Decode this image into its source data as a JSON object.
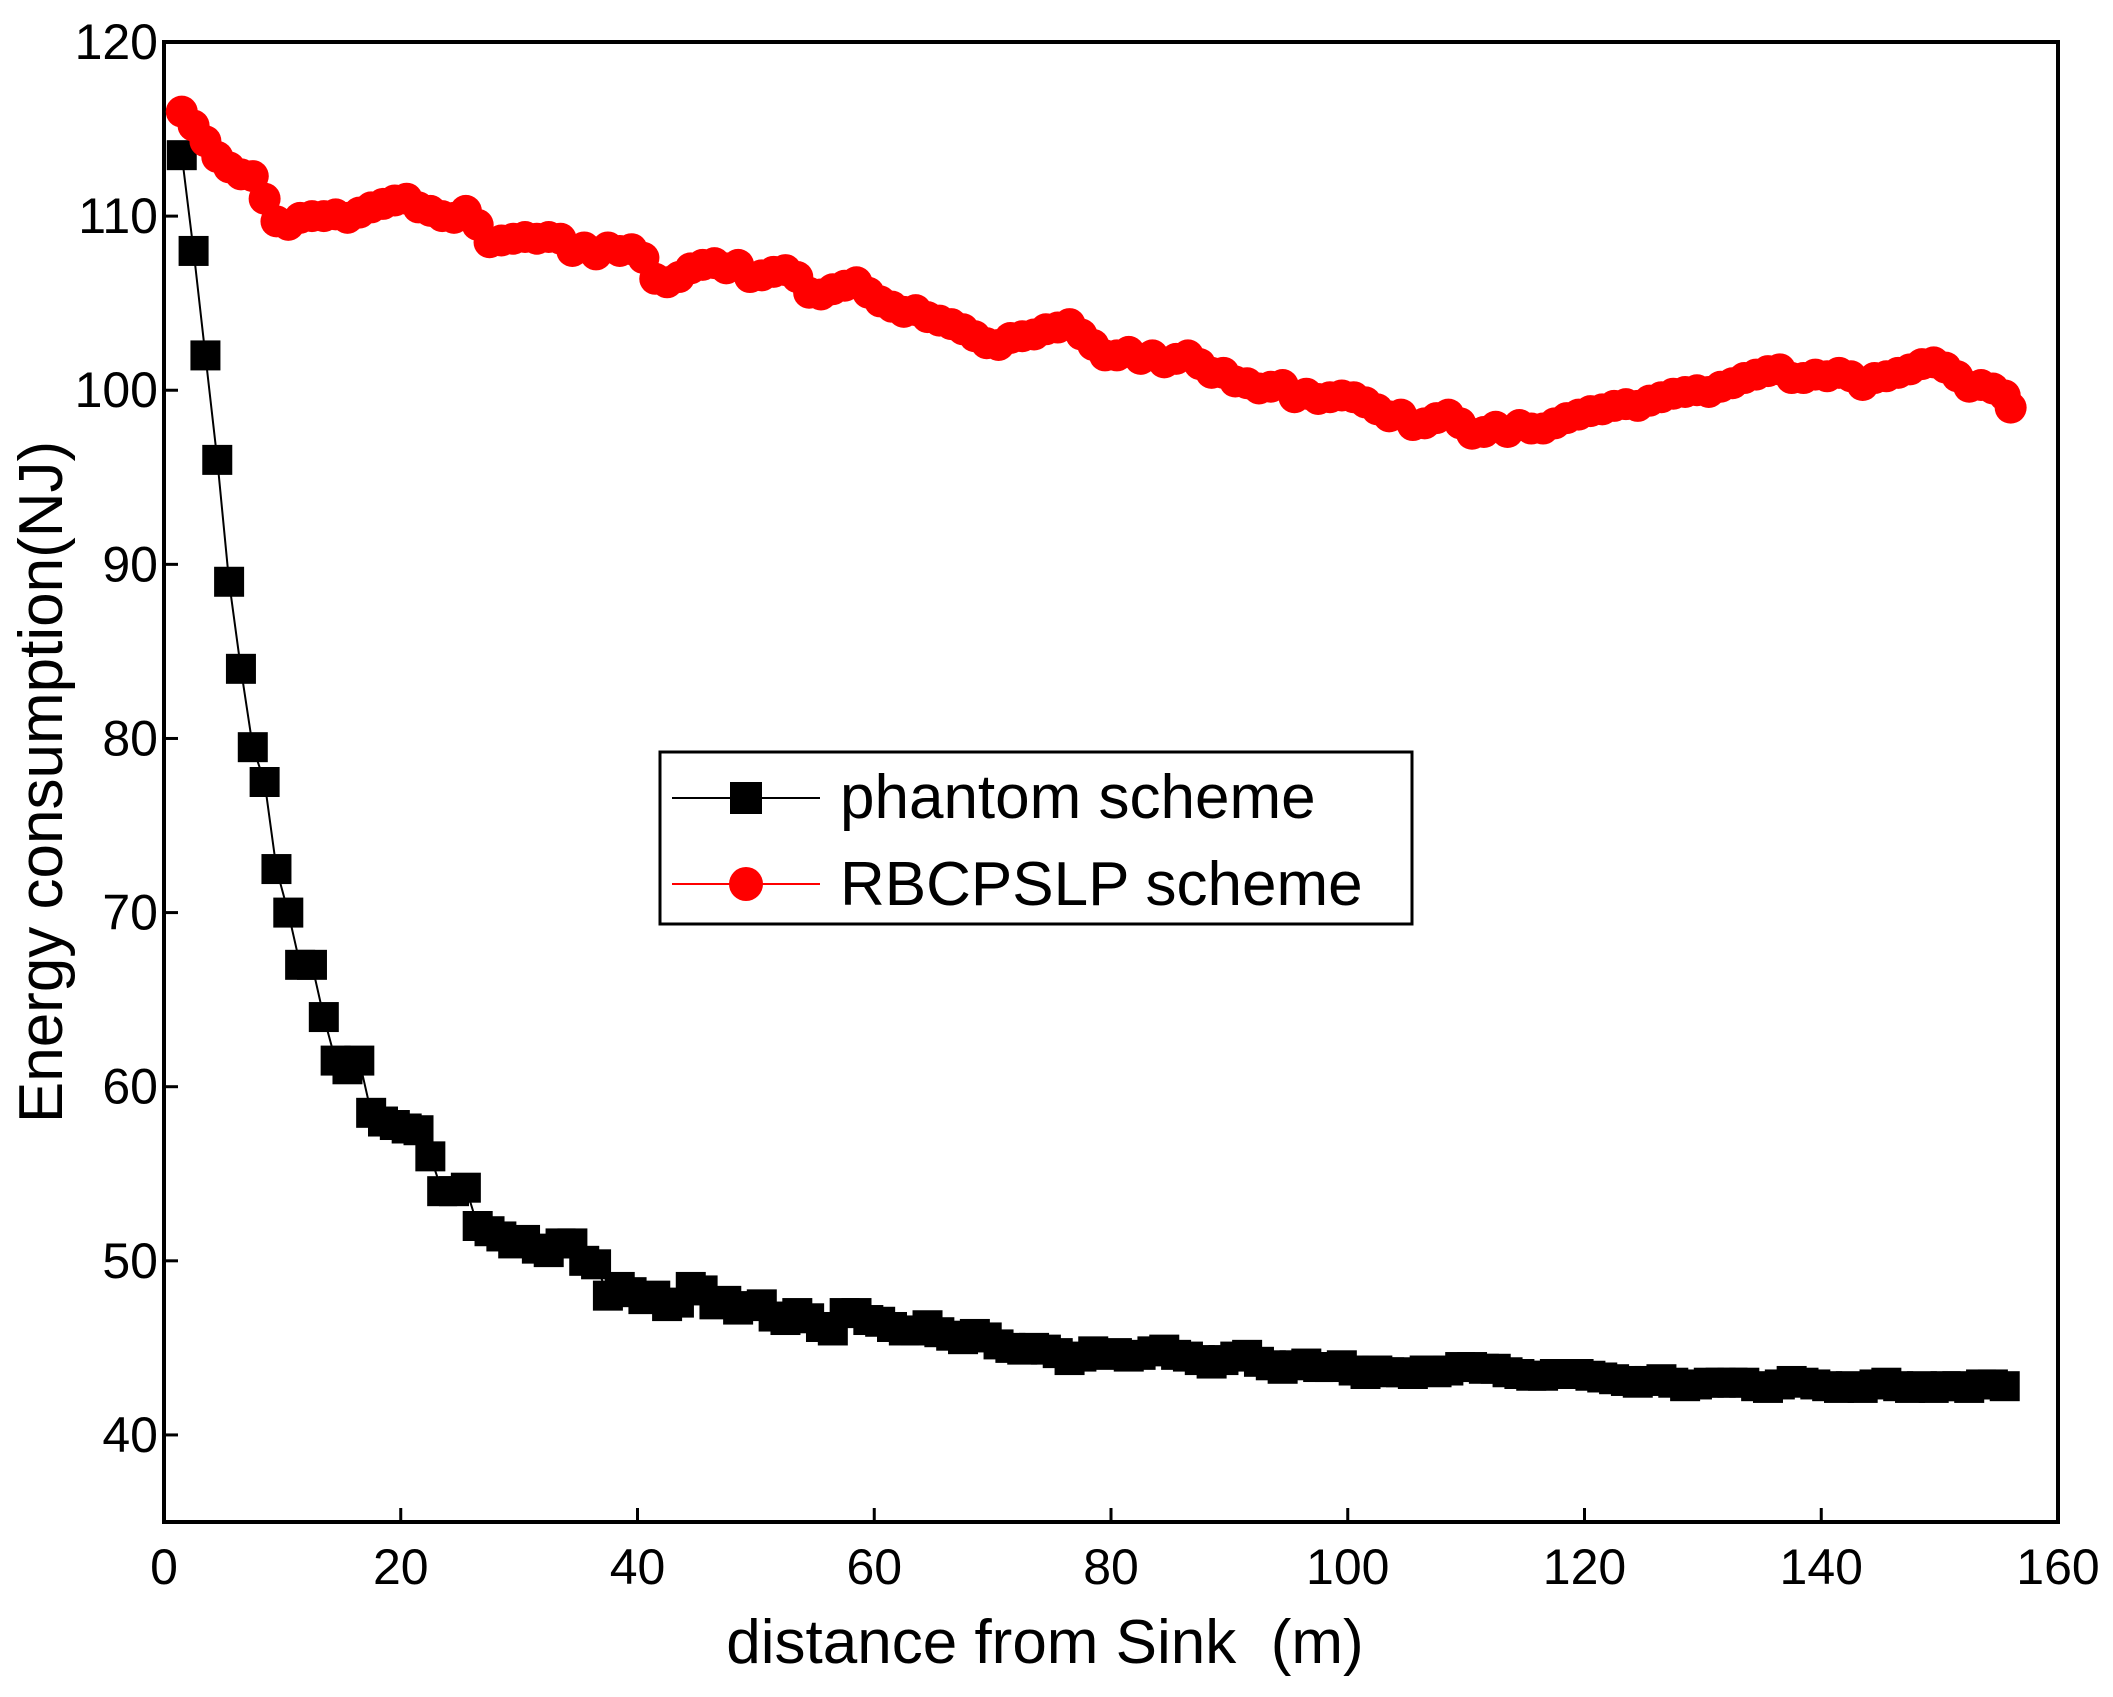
{
  "chart_data": {
    "type": "line",
    "title": "",
    "xlabel": "distance from Sink  (m)",
    "ylabel": "Energy consumption(NJ)",
    "xlim": [
      0,
      160
    ],
    "ylim": [
      35,
      120
    ],
    "xticks": [
      0,
      20,
      40,
      60,
      80,
      100,
      120,
      140,
      160
    ],
    "yticks": [
      40,
      50,
      60,
      70,
      80,
      90,
      100,
      110,
      120
    ],
    "legend_position": "center",
    "series": [
      {
        "name": "phantom scheme",
        "color": "#000000",
        "marker": "square",
        "points": [
          [
            1.5,
            113.5
          ],
          [
            2.5,
            108
          ],
          [
            3.5,
            102
          ],
          [
            4.5,
            96
          ],
          [
            5.5,
            89
          ],
          [
            6.5,
            84
          ],
          [
            7.5,
            79.5
          ],
          [
            8.5,
            77.5
          ],
          [
            9.5,
            72.5
          ],
          [
            10.5,
            70
          ],
          [
            11.5,
            67
          ],
          [
            12.5,
            67
          ],
          [
            13.5,
            64
          ],
          [
            14.5,
            61.5
          ],
          [
            15.5,
            61
          ],
          [
            16.5,
            61.5
          ],
          [
            17.5,
            58.5
          ],
          [
            18.5,
            58
          ],
          [
            19.5,
            57.8
          ],
          [
            20.5,
            57.6
          ],
          [
            21.5,
            57.5
          ],
          [
            22.5,
            56
          ],
          [
            23.5,
            54
          ],
          [
            24.5,
            54
          ],
          [
            25.5,
            54.2
          ],
          [
            26.5,
            52
          ],
          [
            27.5,
            51.7
          ],
          [
            28.5,
            51.4
          ],
          [
            29.5,
            51
          ],
          [
            30.5,
            51.2
          ],
          [
            31.5,
            50.7
          ],
          [
            32.5,
            50.5
          ],
          [
            33.5,
            51
          ],
          [
            34.5,
            51
          ],
          [
            35.5,
            50
          ],
          [
            36.5,
            49.8
          ],
          [
            37.5,
            48
          ],
          [
            38.5,
            48.5
          ],
          [
            39.5,
            48.2
          ],
          [
            40.5,
            47.8
          ],
          [
            41.5,
            48
          ],
          [
            42.5,
            47.4
          ],
          [
            43.5,
            47.6
          ],
          [
            44.5,
            48.5
          ],
          [
            45.5,
            48.3
          ],
          [
            46.5,
            47.5
          ],
          [
            47.5,
            47.7
          ],
          [
            48.5,
            47.2
          ],
          [
            49.5,
            47.4
          ],
          [
            50.5,
            47.5
          ],
          [
            51.5,
            46.8
          ],
          [
            52.5,
            46.6
          ],
          [
            53.5,
            47
          ],
          [
            54.5,
            46.7
          ],
          [
            55.5,
            46.2
          ],
          [
            56.5,
            46
          ],
          [
            57.5,
            47
          ],
          [
            58.5,
            47
          ],
          [
            59.5,
            46.6
          ],
          [
            60.5,
            46.5
          ],
          [
            61.5,
            46.2
          ],
          [
            62.5,
            46
          ],
          [
            63.5,
            46
          ],
          [
            64.5,
            46.3
          ],
          [
            65.5,
            45.9
          ],
          [
            66.5,
            45.7
          ],
          [
            67.5,
            45.5
          ],
          [
            68.5,
            45.8
          ],
          [
            69.5,
            45.6
          ],
          [
            70.5,
            45.2
          ],
          [
            71.5,
            45
          ],
          [
            72.5,
            44.9
          ],
          [
            73.5,
            45
          ],
          [
            74.5,
            44.9
          ],
          [
            75.5,
            44.7
          ],
          [
            76.5,
            44.3
          ],
          [
            77.5,
            44.5
          ],
          [
            78.5,
            44.8
          ],
          [
            79.5,
            44.6
          ],
          [
            80.5,
            44.7
          ],
          [
            81.5,
            44.5
          ],
          [
            82.5,
            44.6
          ],
          [
            83.5,
            44.8
          ],
          [
            84.5,
            44.9
          ],
          [
            85.5,
            44.6
          ],
          [
            86.5,
            44.5
          ],
          [
            87.5,
            44.3
          ],
          [
            88.5,
            44.1
          ],
          [
            89.5,
            44.3
          ],
          [
            90.5,
            44.5
          ],
          [
            91.5,
            44.6
          ],
          [
            92.5,
            44.2
          ],
          [
            93.5,
            44
          ],
          [
            94.5,
            43.8
          ],
          [
            95.5,
            44
          ],
          [
            96.5,
            44.1
          ],
          [
            97.5,
            43.9
          ],
          [
            98.5,
            43.9
          ],
          [
            99.5,
            44
          ],
          [
            100.5,
            43.7
          ],
          [
            101.5,
            43.5
          ],
          [
            102.5,
            43.7
          ],
          [
            103.5,
            43.6
          ],
          [
            104.5,
            43.6
          ],
          [
            105.5,
            43.5
          ],
          [
            106.5,
            43.7
          ],
          [
            107.5,
            43.6
          ],
          [
            108.5,
            43.7
          ],
          [
            109.5,
            43.9
          ],
          [
            110.5,
            43.9
          ],
          [
            111.5,
            43.8
          ],
          [
            112.5,
            43.8
          ],
          [
            113.5,
            43.6
          ],
          [
            114.5,
            43.5
          ],
          [
            115.5,
            43.4
          ],
          [
            116.5,
            43.4
          ],
          [
            117.5,
            43.5
          ],
          [
            118.5,
            43.5
          ],
          [
            119.5,
            43.5
          ],
          [
            120.5,
            43.4
          ],
          [
            121.5,
            43.3
          ],
          [
            122.5,
            43.2
          ],
          [
            123.5,
            43.1
          ],
          [
            124.5,
            43
          ],
          [
            125.5,
            43.1
          ],
          [
            126.5,
            43.2
          ],
          [
            127.5,
            43
          ],
          [
            128.5,
            42.8
          ],
          [
            129.5,
            42.9
          ],
          [
            130.5,
            43
          ],
          [
            131.5,
            43
          ],
          [
            132.5,
            43
          ],
          [
            133.5,
            43
          ],
          [
            134.5,
            42.8
          ],
          [
            135.5,
            42.7
          ],
          [
            136.5,
            42.9
          ],
          [
            137.5,
            43.1
          ],
          [
            138.5,
            43
          ],
          [
            139.5,
            42.9
          ],
          [
            140.5,
            42.8
          ],
          [
            141.5,
            42.7
          ],
          [
            142.5,
            42.8
          ],
          [
            143.5,
            42.7
          ],
          [
            144.5,
            42.9
          ],
          [
            145.5,
            43
          ],
          [
            146.5,
            42.8
          ],
          [
            147.5,
            42.7
          ],
          [
            148.5,
            42.8
          ],
          [
            149.5,
            42.7
          ],
          [
            150.5,
            42.8
          ],
          [
            151.5,
            42.8
          ],
          [
            152.5,
            42.7
          ],
          [
            153.5,
            42.9
          ],
          [
            154.5,
            42.9
          ],
          [
            155.5,
            42.8
          ]
        ]
      },
      {
        "name": "RBCPSLP scheme",
        "color": "#ff0000",
        "marker": "circle",
        "points": [
          [
            1.5,
            116
          ],
          [
            2.5,
            115.2
          ],
          [
            3.5,
            114.3
          ],
          [
            4.5,
            113.4
          ],
          [
            5.5,
            112.8
          ],
          [
            6.5,
            112.4
          ],
          [
            7.5,
            112.3
          ],
          [
            8.5,
            111
          ],
          [
            9.5,
            109.7
          ],
          [
            10.5,
            109.5
          ],
          [
            11.5,
            109.9
          ],
          [
            12.5,
            110
          ],
          [
            13.5,
            110
          ],
          [
            14.5,
            110.1
          ],
          [
            15.5,
            109.9
          ],
          [
            16.5,
            110.2
          ],
          [
            17.5,
            110.5
          ],
          [
            18.5,
            110.7
          ],
          [
            19.5,
            110.9
          ],
          [
            20.5,
            111
          ],
          [
            21.5,
            110.5
          ],
          [
            22.5,
            110.3
          ],
          [
            23.5,
            110
          ],
          [
            24.5,
            109.9
          ],
          [
            25.5,
            110.3
          ],
          [
            26.5,
            109.5
          ],
          [
            27.5,
            108.5
          ],
          [
            28.5,
            108.6
          ],
          [
            29.5,
            108.7
          ],
          [
            30.5,
            108.8
          ],
          [
            31.5,
            108.7
          ],
          [
            32.5,
            108.8
          ],
          [
            33.5,
            108.7
          ],
          [
            34.5,
            108
          ],
          [
            35.5,
            108.2
          ],
          [
            36.5,
            107.8
          ],
          [
            37.5,
            108.2
          ],
          [
            38.5,
            108
          ],
          [
            39.5,
            108.1
          ],
          [
            40.5,
            107.6
          ],
          [
            41.5,
            106.4
          ],
          [
            42.5,
            106.2
          ],
          [
            43.5,
            106.5
          ],
          [
            44.5,
            107
          ],
          [
            45.5,
            107.2
          ],
          [
            46.5,
            107.3
          ],
          [
            47.5,
            107
          ],
          [
            48.5,
            107.2
          ],
          [
            49.5,
            106.5
          ],
          [
            50.5,
            106.6
          ],
          [
            51.5,
            106.8
          ],
          [
            52.5,
            106.9
          ],
          [
            53.5,
            106.5
          ],
          [
            54.5,
            105.6
          ],
          [
            55.5,
            105.5
          ],
          [
            56.5,
            105.8
          ],
          [
            57.5,
            106
          ],
          [
            58.5,
            106.2
          ],
          [
            59.5,
            105.6
          ],
          [
            60.5,
            105.1
          ],
          [
            61.5,
            104.8
          ],
          [
            62.5,
            104.5
          ],
          [
            63.5,
            104.6
          ],
          [
            64.5,
            104.2
          ],
          [
            65.5,
            104
          ],
          [
            66.5,
            103.8
          ],
          [
            67.5,
            103.5
          ],
          [
            68.5,
            103.1
          ],
          [
            69.5,
            102.7
          ],
          [
            70.5,
            102.6
          ],
          [
            71.5,
            103
          ],
          [
            72.5,
            103.1
          ],
          [
            73.5,
            103.2
          ],
          [
            74.5,
            103.5
          ],
          [
            75.5,
            103.6
          ],
          [
            76.5,
            103.8
          ],
          [
            77.5,
            103.2
          ],
          [
            78.5,
            102.6
          ],
          [
            79.5,
            102
          ],
          [
            80.5,
            102
          ],
          [
            81.5,
            102.2
          ],
          [
            82.5,
            101.8
          ],
          [
            83.5,
            102
          ],
          [
            84.5,
            101.6
          ],
          [
            85.5,
            101.8
          ],
          [
            86.5,
            102
          ],
          [
            87.5,
            101.5
          ],
          [
            88.5,
            101
          ],
          [
            89.5,
            101
          ],
          [
            90.5,
            100.5
          ],
          [
            91.5,
            100.4
          ],
          [
            92.5,
            100.1
          ],
          [
            93.5,
            100.2
          ],
          [
            94.5,
            100.3
          ],
          [
            95.5,
            99.6
          ],
          [
            96.5,
            99.8
          ],
          [
            97.5,
            99.5
          ],
          [
            98.5,
            99.6
          ],
          [
            99.5,
            99.7
          ],
          [
            100.5,
            99.6
          ],
          [
            101.5,
            99.3
          ],
          [
            102.5,
            98.9
          ],
          [
            103.5,
            98.5
          ],
          [
            104.5,
            98.6
          ],
          [
            105.5,
            98
          ],
          [
            106.5,
            98.1
          ],
          [
            107.5,
            98.4
          ],
          [
            108.5,
            98.6
          ],
          [
            109.5,
            98.1
          ],
          [
            110.5,
            97.5
          ],
          [
            111.5,
            97.6
          ],
          [
            112.5,
            97.9
          ],
          [
            113.5,
            97.6
          ],
          [
            114.5,
            98
          ],
          [
            115.5,
            97.8
          ],
          [
            116.5,
            97.8
          ],
          [
            117.5,
            98.1
          ],
          [
            118.5,
            98.4
          ],
          [
            119.5,
            98.6
          ],
          [
            120.5,
            98.8
          ],
          [
            121.5,
            98.9
          ],
          [
            122.5,
            99.1
          ],
          [
            123.5,
            99.2
          ],
          [
            124.5,
            99.1
          ],
          [
            125.5,
            99.4
          ],
          [
            126.5,
            99.6
          ],
          [
            127.5,
            99.8
          ],
          [
            128.5,
            99.9
          ],
          [
            129.5,
            100
          ],
          [
            130.5,
            99.9
          ],
          [
            131.5,
            100.2
          ],
          [
            132.5,
            100.4
          ],
          [
            133.5,
            100.7
          ],
          [
            134.5,
            100.9
          ],
          [
            135.5,
            101.1
          ],
          [
            136.5,
            101.2
          ],
          [
            137.5,
            100.7
          ],
          [
            138.5,
            100.7
          ],
          [
            139.5,
            100.9
          ],
          [
            140.5,
            100.8
          ],
          [
            141.5,
            101
          ],
          [
            142.5,
            100.8
          ],
          [
            143.5,
            100.3
          ],
          [
            144.5,
            100.7
          ],
          [
            145.5,
            100.8
          ],
          [
            146.5,
            101
          ],
          [
            147.5,
            101.2
          ],
          [
            148.5,
            101.5
          ],
          [
            149.5,
            101.6
          ],
          [
            150.5,
            101.3
          ],
          [
            151.5,
            100.8
          ],
          [
            152.5,
            100.2
          ],
          [
            153.5,
            100.3
          ],
          [
            154.5,
            100.1
          ],
          [
            155.5,
            99.7
          ],
          [
            156,
            99
          ]
        ]
      }
    ]
  }
}
